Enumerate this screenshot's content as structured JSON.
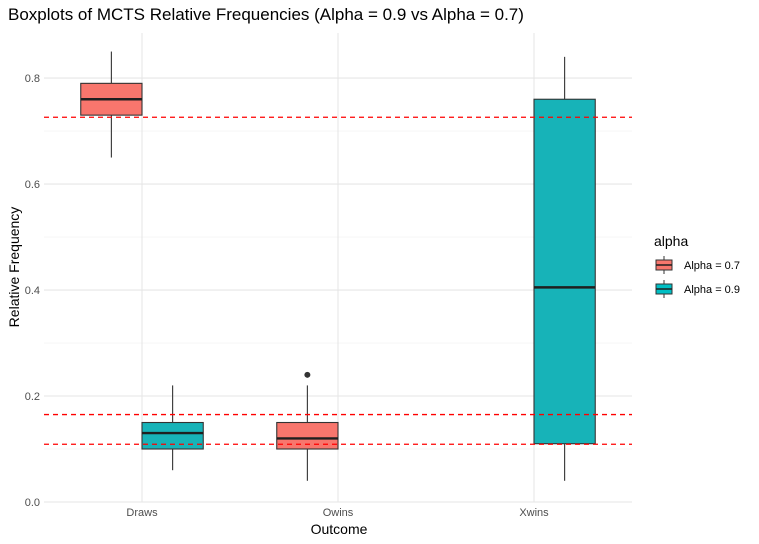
{
  "chart_data": {
    "type": "boxplot",
    "title": "Boxplots of MCTS Relative Frequencies (Alpha = 0.9 vs Alpha = 0.7)",
    "xlabel": "Outcome",
    "ylabel": "Relative Frequency",
    "categories": [
      "Draws",
      "Owins",
      "Xwins"
    ],
    "ylim": [
      0,
      0.885
    ],
    "yticks": [
      0.0,
      0.2,
      0.4,
      0.6,
      0.8
    ],
    "ytick_labels": [
      "0.0",
      "0.2",
      "0.4",
      "0.6",
      "0.8"
    ],
    "grid": true,
    "legend": {
      "title": "alpha",
      "position": "right",
      "entries": [
        {
          "label": "Alpha = 0.7",
          "color": "#F8766D"
        },
        {
          "label": "Alpha = 0.9",
          "color": "#00BFC4"
        }
      ]
    },
    "reference_lines": [
      {
        "y": 0.726,
        "color": "#ff0000",
        "style": "dashed"
      },
      {
        "y": 0.165,
        "color": "#ff0000",
        "style": "dashed"
      },
      {
        "y": 0.109,
        "color": "#ff0000",
        "style": "dashed"
      }
    ],
    "boxes": [
      {
        "category": "Draws",
        "group": "Alpha = 0.7",
        "color": "#F8766D",
        "whisker_low": 0.65,
        "q1": 0.73,
        "median": 0.76,
        "q3": 0.79,
        "whisker_high": 0.85,
        "outliers": []
      },
      {
        "category": "Draws",
        "group": "Alpha = 0.9",
        "color": "#17B3B8",
        "whisker_low": 0.06,
        "q1": 0.1,
        "median": 0.13,
        "q3": 0.15,
        "whisker_high": 0.22,
        "outliers": []
      },
      {
        "category": "Owins",
        "group": "Alpha = 0.7",
        "color": "#F8766D",
        "whisker_low": 0.04,
        "q1": 0.1,
        "median": 0.12,
        "q3": 0.15,
        "whisker_high": 0.22,
        "outliers": [
          0.24
        ]
      },
      {
        "category": "Xwins",
        "group": "Alpha = 0.9",
        "color": "#17B3B8",
        "whisker_low": 0.04,
        "q1": 0.11,
        "median": 0.405,
        "q3": 0.76,
        "whisker_high": 0.84,
        "outliers": []
      }
    ]
  }
}
